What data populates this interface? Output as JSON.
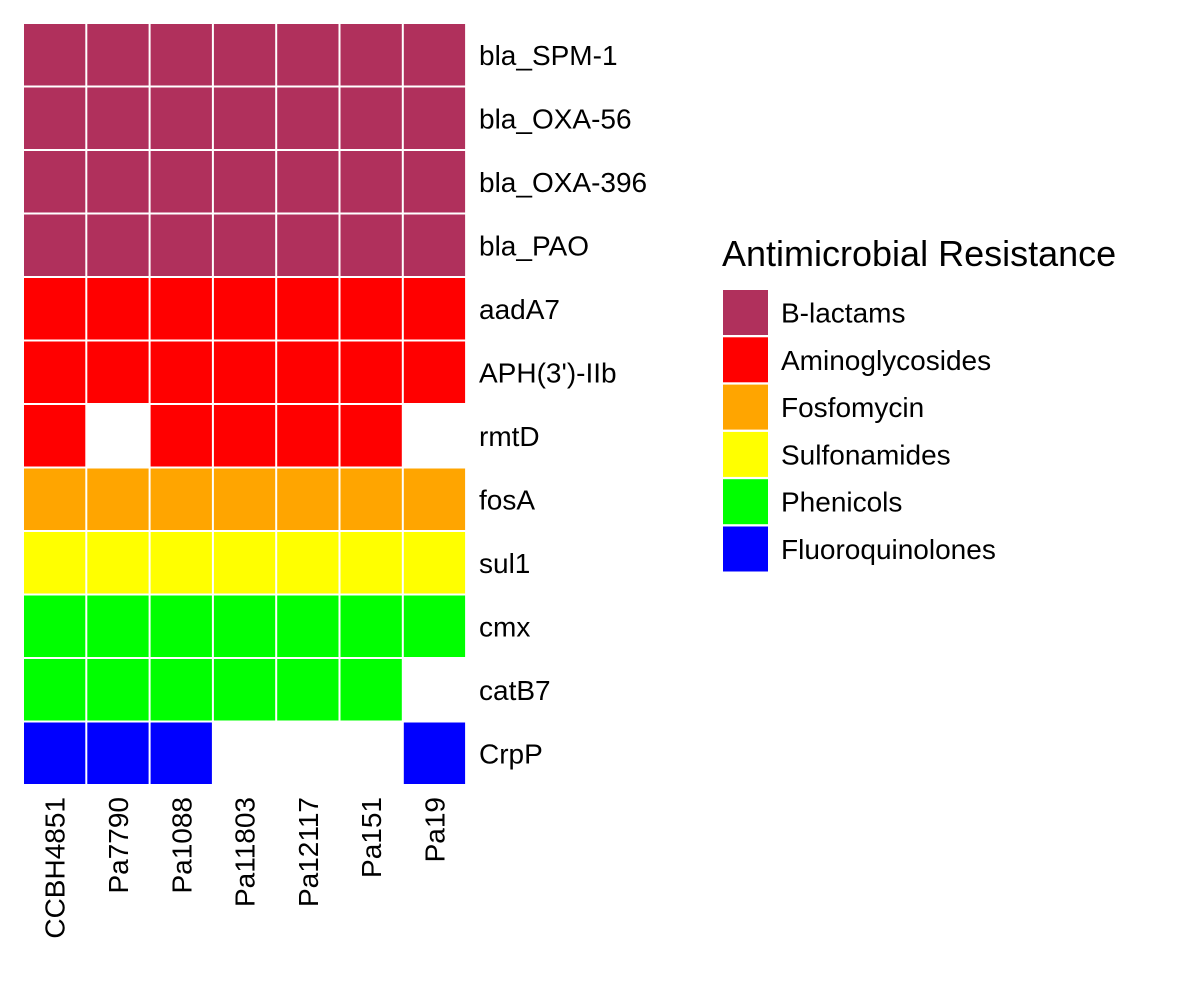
{
  "chart_data": {
    "type": "heatmap",
    "legend_title": "Antimicrobial Resistance",
    "legend_placement": "right",
    "columns": [
      "CCBH4851",
      "Pa7790",
      "Pa1088",
      "Pa11803",
      "Pa12117",
      "Pa151",
      "Pa19"
    ],
    "rows": [
      "bla_SPM-1",
      "bla_OXA-56",
      "bla_OXA-396",
      "bla_PAO",
      "aadA7",
      "APH(3')-IIb",
      "rmtD",
      "fosA",
      "sul1",
      "cmx",
      "catB7",
      "CrpP"
    ],
    "row_class": [
      "B-lactams",
      "B-lactams",
      "B-lactams",
      "B-lactams",
      "Aminoglycosides",
      "Aminoglycosides",
      "Aminoglycosides",
      "Fosfomycin",
      "Sulfonamides",
      "Phenicols",
      "Phenicols",
      "Fluoroquinolones"
    ],
    "presence": [
      [
        1,
        1,
        1,
        1,
        1,
        1,
        1
      ],
      [
        1,
        1,
        1,
        1,
        1,
        1,
        1
      ],
      [
        1,
        1,
        1,
        1,
        1,
        1,
        1
      ],
      [
        1,
        1,
        1,
        1,
        1,
        1,
        1
      ],
      [
        1,
        1,
        1,
        1,
        1,
        1,
        1
      ],
      [
        1,
        1,
        1,
        1,
        1,
        1,
        1
      ],
      [
        1,
        0,
        1,
        1,
        1,
        1,
        0
      ],
      [
        1,
        1,
        1,
        1,
        1,
        1,
        1
      ],
      [
        1,
        1,
        1,
        1,
        1,
        1,
        1
      ],
      [
        1,
        1,
        1,
        1,
        1,
        1,
        1
      ],
      [
        1,
        1,
        1,
        1,
        1,
        1,
        0
      ],
      [
        1,
        1,
        1,
        0,
        0,
        0,
        1
      ]
    ],
    "classes": [
      {
        "name": "B-lactams",
        "color": "#B0305C"
      },
      {
        "name": "Aminoglycosides",
        "color": "#FF0000"
      },
      {
        "name": "Fosfomycin",
        "color": "#FFA500"
      },
      {
        "name": "Sulfonamides",
        "color": "#FFFF00"
      },
      {
        "name": "Phenicols",
        "color": "#00FF00"
      },
      {
        "name": "Fluoroquinolones",
        "color": "#0000FF"
      }
    ]
  }
}
